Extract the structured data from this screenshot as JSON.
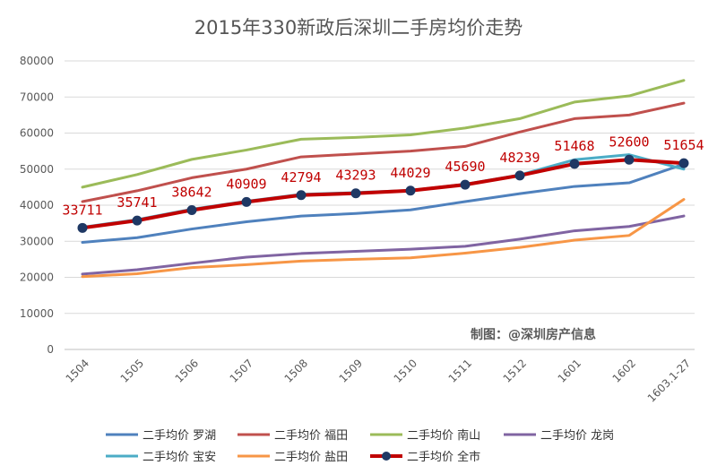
{
  "chart_data": {
    "type": "line",
    "title": "2015年330新政后深圳二手房均价走势",
    "categories": [
      "1504",
      "1505",
      "1506",
      "1507",
      "1508",
      "1509",
      "1510",
      "1511",
      "1512",
      "1601",
      "1602",
      "1603.1-27"
    ],
    "ylim": [
      0,
      80000
    ],
    "yticks": [
      0,
      10000,
      20000,
      30000,
      40000,
      50000,
      60000,
      70000,
      80000
    ],
    "grid": true,
    "legend_position": "bottom",
    "watermark": "制图：@深圳房产信息",
    "series": [
      {
        "name": "二手均价 罗湖",
        "color": "#4f81bd",
        "markers": false,
        "values": [
          29700,
          31000,
          33400,
          35400,
          37000,
          37700,
          38700,
          41000,
          43200,
          45200,
          46200,
          51400
        ]
      },
      {
        "name": "二手均价 福田",
        "color": "#c0504d",
        "markers": false,
        "values": [
          41000,
          44000,
          47600,
          50000,
          53400,
          54200,
          55000,
          56300,
          60300,
          64000,
          65000,
          68300
        ]
      },
      {
        "name": "二手均价 南山",
        "color": "#9bbb59",
        "markers": false,
        "values": [
          45000,
          48500,
          52700,
          55300,
          58300,
          58800,
          59500,
          61400,
          64000,
          68600,
          70300,
          74600
        ]
      },
      {
        "name": "二手均价 龙岗",
        "color": "#8064a2",
        "markers": false,
        "values": [
          20900,
          22100,
          23900,
          25600,
          26600,
          27200,
          27800,
          28600,
          30600,
          32900,
          34100,
          37000
        ]
      },
      {
        "name": "二手均价 宝安",
        "color": "#4bacc6",
        "markers": false,
        "values": [
          33900,
          36000,
          38900,
          41100,
          43000,
          43500,
          44100,
          45800,
          48400,
          52600,
          54000,
          50000
        ]
      },
      {
        "name": "二手均价 盐田",
        "color": "#f79646",
        "markers": false,
        "values": [
          20200,
          21000,
          22700,
          23500,
          24500,
          25000,
          25400,
          26700,
          28300,
          30300,
          31600,
          41600
        ]
      },
      {
        "name": "二手均价 全市",
        "color": "#c00000",
        "markers": true,
        "show_labels": true,
        "values": [
          33711,
          35741,
          38642,
          40909,
          42794,
          43293,
          44029,
          45690,
          48239,
          51468,
          52600,
          51654
        ]
      }
    ]
  }
}
